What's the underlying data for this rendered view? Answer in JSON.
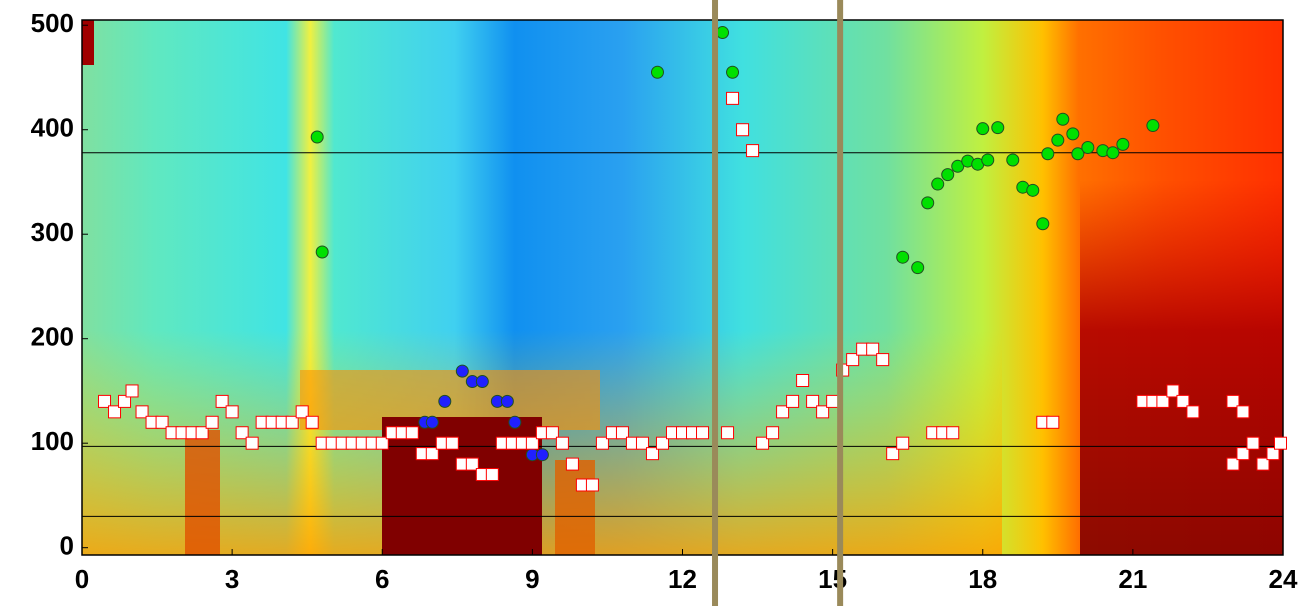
{
  "chart_data": {
    "type": "scatter",
    "xlim": [
      0,
      24
    ],
    "xticks": [
      0,
      3,
      6,
      9,
      12,
      15,
      18,
      21,
      24
    ],
    "ylim": [
      -7,
      505
    ],
    "yticks": [
      0,
      100,
      200,
      300,
      400,
      500
    ],
    "hlines": [
      378,
      97,
      30
    ],
    "vlines": [
      12.65,
      15.15
    ],
    "series": [
      {
        "color": "#00e000",
        "marker": "circle",
        "x": [
          4.7,
          4.8,
          11.5,
          12.8,
          13.0,
          16.4,
          16.7,
          16.9,
          17.1,
          17.3,
          17.5,
          17.7,
          17.9,
          18.1,
          18.0,
          18.3,
          18.6,
          18.8,
          19.0,
          19.2,
          19.3,
          19.5,
          19.6,
          19.8,
          19.9,
          20.1,
          20.4,
          20.6,
          20.8,
          21.4
        ],
        "values": [
          393,
          283,
          455,
          493,
          455,
          278,
          268,
          330,
          348,
          357,
          365,
          370,
          367,
          371,
          401,
          402,
          371,
          345,
          342,
          310,
          377,
          390,
          410,
          396,
          377,
          383,
          380,
          378,
          386,
          404
        ]
      },
      {
        "color": "#2020ff",
        "marker": "circle",
        "x": [
          6.85,
          7.0,
          7.25,
          7.6,
          7.8,
          8.0,
          8.3,
          8.5,
          8.65,
          8.8,
          9.0,
          9.2
        ],
        "values": [
          120,
          120,
          140,
          169,
          159,
          159,
          140,
          140,
          120,
          100,
          89,
          89
        ]
      },
      {
        "color": "#ff0000",
        "marker": "square",
        "x": [
          0.45,
          0.65,
          0.85,
          1.0,
          1.2,
          1.4,
          1.6,
          1.8,
          2.0,
          2.2,
          2.4,
          2.6,
          2.8,
          3.0,
          3.2,
          3.4,
          3.6,
          3.8,
          4.0,
          4.2,
          4.4,
          4.6,
          4.8,
          5.0,
          5.2,
          5.4,
          5.6,
          5.8,
          6.0,
          6.2,
          6.4,
          6.6,
          6.8,
          7.0,
          7.2,
          7.4,
          7.6,
          7.8,
          8.0,
          8.2,
          8.4,
          8.6,
          8.8,
          9.0,
          9.2,
          9.4,
          9.6,
          9.8,
          10.0,
          10.2,
          10.4,
          10.6,
          10.8,
          11.0,
          11.2,
          11.4,
          11.6,
          11.8,
          12.0,
          12.2,
          12.4,
          12.9,
          13.0,
          13.2,
          13.4,
          13.6,
          13.8,
          14.0,
          14.2,
          14.4,
          14.6,
          14.8,
          15.0,
          15.2,
          15.4,
          15.6,
          15.8,
          16.0,
          16.2,
          16.4,
          17.0,
          17.2,
          17.4,
          19.2,
          19.4,
          21.2,
          21.4,
          21.6,
          21.8,
          22.0,
          22.2,
          23.0,
          23.2,
          23.0,
          23.2,
          23.4,
          23.6,
          23.8,
          23.95
        ],
        "values": [
          140,
          130,
          140,
          150,
          130,
          120,
          120,
          110,
          110,
          110,
          110,
          120,
          140,
          130,
          110,
          100,
          120,
          120,
          120,
          120,
          130,
          120,
          100,
          100,
          100,
          100,
          100,
          100,
          100,
          110,
          110,
          110,
          90,
          90,
          100,
          100,
          80,
          80,
          70,
          70,
          100,
          100,
          100,
          100,
          110,
          110,
          100,
          80,
          60,
          60,
          100,
          110,
          110,
          100,
          100,
          90,
          100,
          110,
          110,
          110,
          110,
          110,
          430,
          400,
          380,
          100,
          110,
          130,
          140,
          160,
          140,
          130,
          140,
          170,
          180,
          190,
          190,
          180,
          90,
          100,
          110,
          110,
          110,
          120,
          120,
          140,
          140,
          140,
          150,
          140,
          130,
          140,
          130,
          80,
          90,
          100,
          80,
          90,
          100
        ]
      }
    ]
  }
}
